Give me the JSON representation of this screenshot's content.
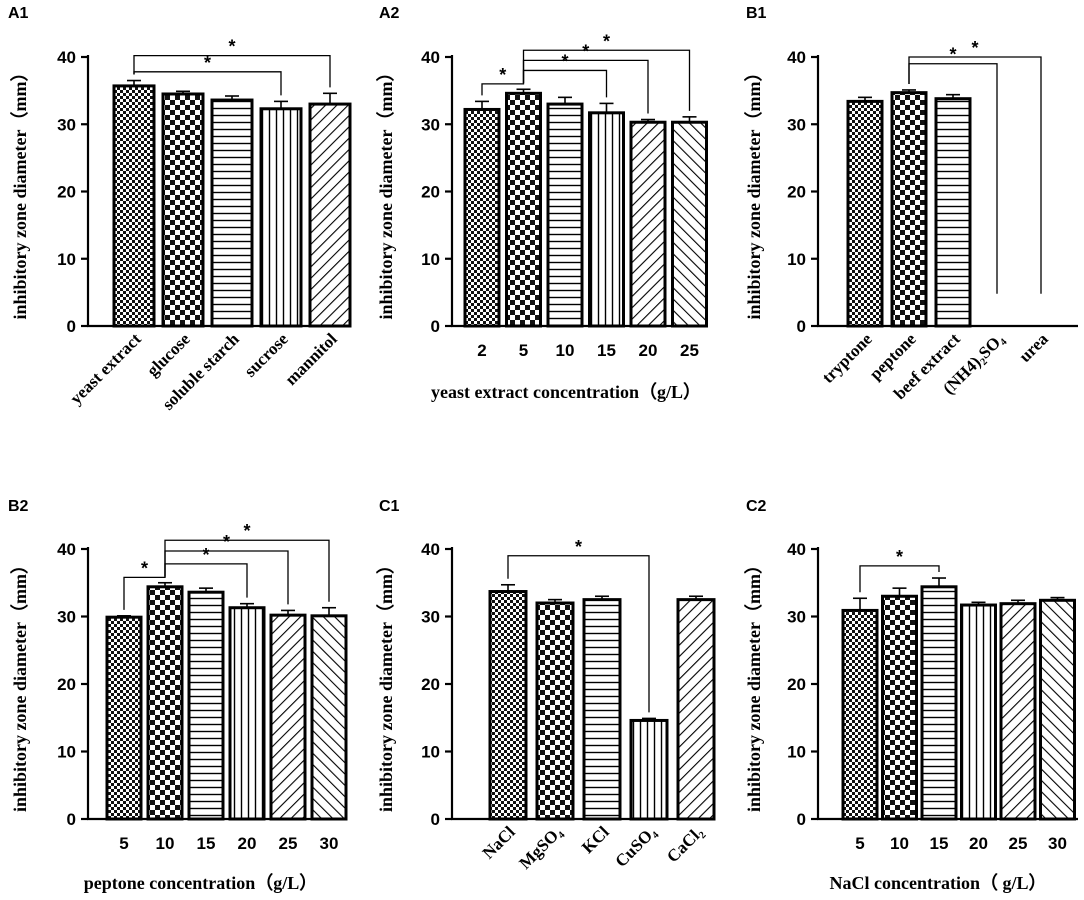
{
  "chart_data": [
    {
      "id": "A1",
      "type": "bar",
      "label": "A1",
      "ylabel": "inhibitory zone diameter（mm）",
      "xlabel": "",
      "ylim": [
        0,
        40
      ],
      "yticks": [
        "0",
        "10",
        "20",
        "30",
        "40"
      ],
      "categories": [
        "yeast extract",
        "glucose",
        "soluble starch",
        "sucrose",
        "mannitol"
      ],
      "category_style": "rotated",
      "values": [
        35.7,
        34.5,
        33.6,
        32.3,
        33.0
      ],
      "errors": [
        0.8,
        0.4,
        0.6,
        1.1,
        1.6
      ],
      "patterns": [
        "checker",
        "checker-big",
        "hstripe",
        "vstripe",
        "diag"
      ],
      "significance": [
        {
          "from": 0,
          "to": 3,
          "label": "*"
        },
        {
          "from": 0,
          "to": 4,
          "label": "*"
        }
      ]
    },
    {
      "id": "A2",
      "type": "bar",
      "label": "A2",
      "ylabel": "inhibitory zone diameter（mm）",
      "xlabel": "yeast extract concentration（g/L）",
      "ylim": [
        0,
        40
      ],
      "yticks": [
        "0",
        "10",
        "20",
        "30",
        "40"
      ],
      "categories": [
        "2",
        "5",
        "10",
        "15",
        "20",
        "25"
      ],
      "category_style": "numeric",
      "values": [
        32.2,
        34.6,
        33.0,
        31.7,
        30.3,
        30.3
      ],
      "errors": [
        1.2,
        0.6,
        1.0,
        1.4,
        0.4,
        0.8
      ],
      "patterns": [
        "checker",
        "checker-big",
        "hstripe",
        "vstripe",
        "diag",
        "diag-back"
      ],
      "significance": [
        {
          "from": 0,
          "to": 1,
          "label": "*"
        },
        {
          "from": 1,
          "to": 3,
          "label": "*"
        },
        {
          "from": 1,
          "to": 4,
          "label": "*"
        },
        {
          "from": 1,
          "to": 5,
          "label": "*"
        }
      ]
    },
    {
      "id": "B1",
      "type": "bar",
      "label": "B1",
      "ylabel": "inhibitory zone diameter（mm）",
      "xlabel": "",
      "ylim": [
        0,
        40
      ],
      "yticks": [
        "0",
        "10",
        "20",
        "30",
        "40"
      ],
      "categories": [
        "tryptone",
        "peptone",
        "beef extract",
        "(NH4)₂SO₄",
        "urea"
      ],
      "category_style": "rotated",
      "values": [
        33.4,
        34.7,
        33.8,
        0,
        0
      ],
      "errors": [
        0.6,
        0.4,
        0.6,
        0,
        0
      ],
      "patterns": [
        "checker",
        "checker-big",
        "hstripe",
        "none",
        "none"
      ],
      "significance": [
        {
          "from": 1,
          "to": 3,
          "label": "*"
        },
        {
          "from": 1,
          "to": 4,
          "label": "*"
        }
      ]
    },
    {
      "id": "B2",
      "type": "bar",
      "label": "B2",
      "ylabel": "inhibitory zone diameter（mm）",
      "xlabel": "peptone concentration（g/L）",
      "ylim": [
        0,
        40
      ],
      "yticks": [
        "0",
        "10",
        "20",
        "30",
        "40"
      ],
      "categories": [
        "5",
        "10",
        "15",
        "20",
        "25",
        "30"
      ],
      "category_style": "numeric",
      "values": [
        29.9,
        34.4,
        33.6,
        31.3,
        30.2,
        30.1
      ],
      "errors": [
        0.2,
        0.6,
        0.6,
        0.6,
        0.7,
        1.2
      ],
      "patterns": [
        "checker",
        "checker-big",
        "hstripe",
        "vstripe",
        "diag",
        "diag-back"
      ],
      "significance": [
        {
          "from": 0,
          "to": 1,
          "label": "*"
        },
        {
          "from": 1,
          "to": 3,
          "label": "*"
        },
        {
          "from": 1,
          "to": 4,
          "label": "*"
        },
        {
          "from": 1,
          "to": 5,
          "label": "*"
        }
      ]
    },
    {
      "id": "C1",
      "type": "bar",
      "label": "C1",
      "ylabel": "inhibitory zone diameter（mm）",
      "xlabel": "",
      "ylim": [
        0,
        40
      ],
      "yticks": [
        "0",
        "10",
        "20",
        "30",
        "40"
      ],
      "categories": [
        "NaCl",
        "MgSO₄",
        "KCl",
        "CuSO₄",
        "CaCl₂"
      ],
      "category_style": "rotated",
      "values": [
        33.7,
        32.0,
        32.5,
        14.6,
        32.5
      ],
      "errors": [
        1.0,
        0.5,
        0.5,
        0.3,
        0.5
      ],
      "patterns": [
        "checker",
        "checker-big",
        "hstripe",
        "vstripe",
        "diag"
      ],
      "significance": [
        {
          "from": 0,
          "to": 3,
          "label": "*"
        }
      ]
    },
    {
      "id": "C2",
      "type": "bar",
      "label": "C2",
      "ylabel": "inhibitory zone diameter（mm）",
      "xlabel": "NaCl concentration（ g/L）",
      "ylim": [
        0,
        40
      ],
      "yticks": [
        "0",
        "10",
        "20",
        "30",
        "40"
      ],
      "categories": [
        "5",
        "10",
        "15",
        "20",
        "25",
        "30"
      ],
      "category_style": "numeric",
      "values": [
        30.9,
        33.0,
        34.4,
        31.7,
        31.9,
        32.4
      ],
      "errors": [
        1.8,
        1.2,
        1.3,
        0.4,
        0.5,
        0.4
      ],
      "patterns": [
        "checker",
        "checker-big",
        "hstripe",
        "vstripe",
        "diag",
        "diag-back"
      ],
      "significance": [
        {
          "from": 0,
          "to": 2,
          "label": "*"
        }
      ]
    }
  ]
}
